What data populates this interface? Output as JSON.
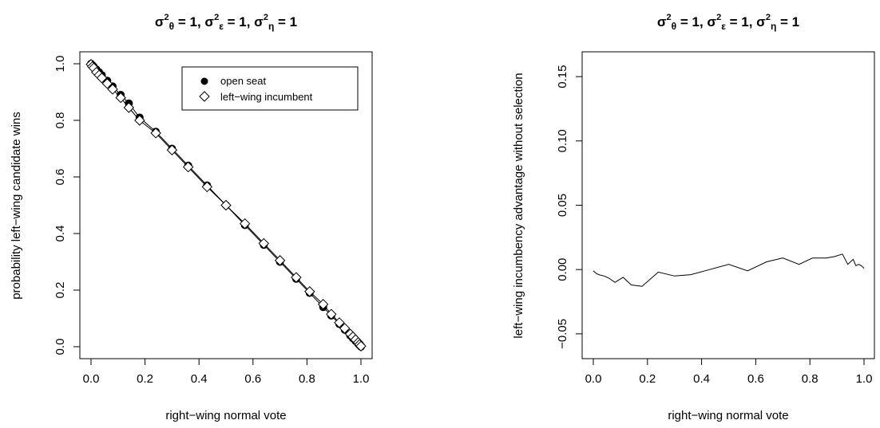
{
  "chart_data": [
    {
      "type": "scatter",
      "title": "σ2θ = 1, σ2ε = 1, σ2η = 1",
      "title_parts": [
        {
          "sym": "σ",
          "sup": "2",
          "sub": "θ",
          "rest": " = 1, "
        },
        {
          "sym": "σ",
          "sup": "2",
          "sub": "ε",
          "rest": " = 1, "
        },
        {
          "sym": "σ",
          "sup": "2",
          "sub": "η",
          "rest": " = 1"
        }
      ],
      "xlabel": "right−wing normal vote",
      "ylabel": "probability left−wing candidate wins",
      "xlim": [
        0,
        1
      ],
      "ylim": [
        0,
        1
      ],
      "x_ticks": [
        0.0,
        0.2,
        0.4,
        0.6,
        0.8,
        1.0
      ],
      "x_tick_labels": [
        "0.0",
        "0.2",
        "0.4",
        "0.6",
        "0.8",
        "1.0"
      ],
      "y_ticks": [
        0.0,
        0.2,
        0.4,
        0.6,
        0.8,
        1.0
      ],
      "y_tick_labels": [
        "0.0",
        "0.2",
        "0.4",
        "0.6",
        "0.8",
        "1.0"
      ],
      "legend_position": "top-right",
      "x": [
        0.0,
        0.005,
        0.01,
        0.02,
        0.03,
        0.04,
        0.06,
        0.08,
        0.11,
        0.14,
        0.18,
        0.24,
        0.3,
        0.36,
        0.43,
        0.5,
        0.57,
        0.64,
        0.7,
        0.76,
        0.81,
        0.86,
        0.89,
        0.92,
        0.94,
        0.96,
        0.97,
        0.98,
        0.99,
        0.995,
        1.0
      ],
      "series": [
        {
          "name": "open seat",
          "marker": "filled-circle",
          "values": [
            1.0,
            0.995,
            0.99,
            0.98,
            0.97,
            0.96,
            0.94,
            0.92,
            0.89,
            0.86,
            0.81,
            0.76,
            0.7,
            0.64,
            0.57,
            0.5,
            0.43,
            0.36,
            0.3,
            0.24,
            0.19,
            0.14,
            0.11,
            0.08,
            0.06,
            0.04,
            0.03,
            0.02,
            0.01,
            0.005,
            0.0
          ]
        },
        {
          "name": "left−wing incumbent",
          "marker": "open-diamond",
          "values": [
            0.998,
            0.99,
            0.985,
            0.97,
            0.96,
            0.95,
            0.93,
            0.91,
            0.88,
            0.845,
            0.8,
            0.755,
            0.695,
            0.635,
            0.565,
            0.5,
            0.435,
            0.365,
            0.305,
            0.245,
            0.195,
            0.15,
            0.115,
            0.085,
            0.065,
            0.045,
            0.035,
            0.025,
            0.015,
            0.008,
            0.002
          ]
        }
      ]
    },
    {
      "type": "line",
      "title": "σ2θ = 1, σ2ε = 1, σ2η = 1",
      "title_parts": [
        {
          "sym": "σ",
          "sup": "2",
          "sub": "θ",
          "rest": " = 1, "
        },
        {
          "sym": "σ",
          "sup": "2",
          "sub": "ε",
          "rest": " = 1, "
        },
        {
          "sym": "σ",
          "sup": "2",
          "sub": "η",
          "rest": " = 1"
        }
      ],
      "xlabel": "right−wing normal vote",
      "ylabel": "left−wing incumbency advantage without selection",
      "xlim": [
        0,
        1
      ],
      "ylim": [
        -0.06,
        0.16
      ],
      "x_ticks": [
        0.0,
        0.2,
        0.4,
        0.6,
        0.8,
        1.0
      ],
      "x_tick_labels": [
        "0.0",
        "0.2",
        "0.4",
        "0.6",
        "0.8",
        "1.0"
      ],
      "y_ticks": [
        -0.05,
        0.0,
        0.05,
        0.1,
        0.15
      ],
      "y_tick_labels": [
        "−0.05",
        "0.00",
        "0.05",
        "0.10",
        "0.15"
      ],
      "x": [
        0.0,
        0.01,
        0.02,
        0.04,
        0.06,
        0.08,
        0.11,
        0.14,
        0.18,
        0.24,
        0.3,
        0.36,
        0.43,
        0.5,
        0.57,
        0.64,
        0.7,
        0.76,
        0.81,
        0.86,
        0.89,
        0.92,
        0.94,
        0.96,
        0.97,
        0.98,
        0.99,
        1.0
      ],
      "series": [
        {
          "values": [
            -0.001,
            -0.003,
            -0.004,
            -0.005,
            -0.007,
            -0.01,
            -0.006,
            -0.012,
            -0.013,
            -0.002,
            -0.005,
            -0.004,
            0.0,
            0.004,
            -0.001,
            0.006,
            0.009,
            0.004,
            0.009,
            0.009,
            0.01,
            0.012,
            0.004,
            0.008,
            0.003,
            0.004,
            0.003,
            0.001
          ]
        }
      ]
    }
  ]
}
